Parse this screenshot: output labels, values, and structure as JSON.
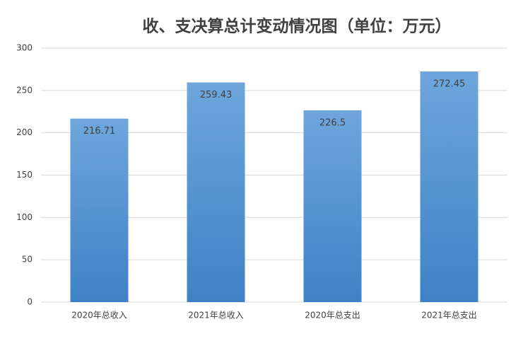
{
  "chart_data": {
    "type": "bar",
    "title": "收、支决算总计变动情况图（单位：万元）",
    "categories": [
      "2020年总收入",
      "2021年总收入",
      "2020年总支出",
      "2021年总支出"
    ],
    "values": [
      216.71,
      259.43,
      226.5,
      272.45
    ],
    "color": "#5b9bd5",
    "ylim": [
      0,
      300
    ],
    "yticks": [
      0,
      50,
      100,
      150,
      200,
      250,
      300
    ],
    "grid": true
  }
}
